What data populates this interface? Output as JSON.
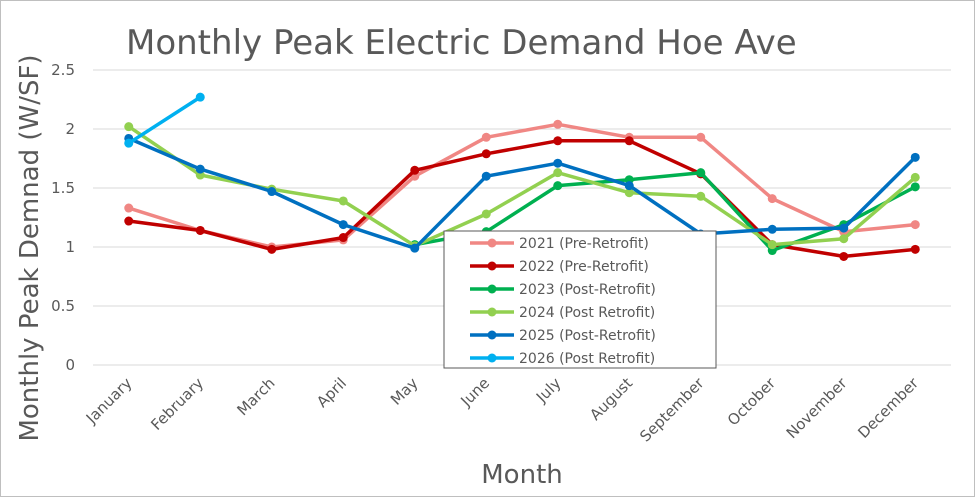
{
  "chart_data": {
    "type": "line",
    "title": "Monthly Peak Electric Demand Hoe Ave",
    "xlabel": "Month",
    "ylabel": "Monthly Peak Demnad (W/SF)",
    "ylim": [
      0,
      2.5
    ],
    "yticks": [
      "0",
      "0.5",
      "1",
      "1.5",
      "2",
      "2.5"
    ],
    "grid": true,
    "legend_position": "center-bottom",
    "categories": [
      "January",
      "February",
      "March",
      "April",
      "May",
      "June",
      "July",
      "August",
      "September",
      "October",
      "November",
      "December"
    ],
    "series": [
      {
        "name": "2021 (Pre-Retrofit)",
        "color": "#f08784",
        "values": [
          1.33,
          1.14,
          1.0,
          1.06,
          1.6,
          1.93,
          2.04,
          1.93,
          1.93,
          1.41,
          1.13,
          1.19
        ]
      },
      {
        "name": "2022 (Pre-Retrofit)",
        "color": "#c00000",
        "values": [
          1.22,
          1.14,
          0.98,
          1.08,
          1.65,
          1.79,
          1.9,
          1.9,
          1.62,
          1.02,
          0.92,
          0.98
        ]
      },
      {
        "name": "2023 (Post-Retrofit)",
        "color": "#00b050",
        "values": [
          null,
          null,
          null,
          null,
          1.02,
          1.13,
          1.52,
          1.57,
          1.63,
          0.97,
          1.19,
          1.51
        ]
      },
      {
        "name": "2024 (Post Retrofit)",
        "color": "#92d050",
        "values": [
          2.02,
          1.61,
          1.49,
          1.39,
          1.01,
          1.28,
          1.63,
          1.46,
          1.43,
          1.02,
          1.07,
          1.59
        ]
      },
      {
        "name": "2025 (Post-Retrofit)",
        "color": "#0070c0",
        "values": [
          1.92,
          1.66,
          1.47,
          1.19,
          0.99,
          1.6,
          1.71,
          1.52,
          1.11,
          1.15,
          1.16,
          1.76
        ]
      },
      {
        "name": "2026 (Post Retrofit)",
        "color": "#00b0f0",
        "values": [
          1.88,
          2.27,
          null,
          null,
          null,
          null,
          null,
          null,
          null,
          null,
          null,
          null
        ]
      }
    ]
  }
}
